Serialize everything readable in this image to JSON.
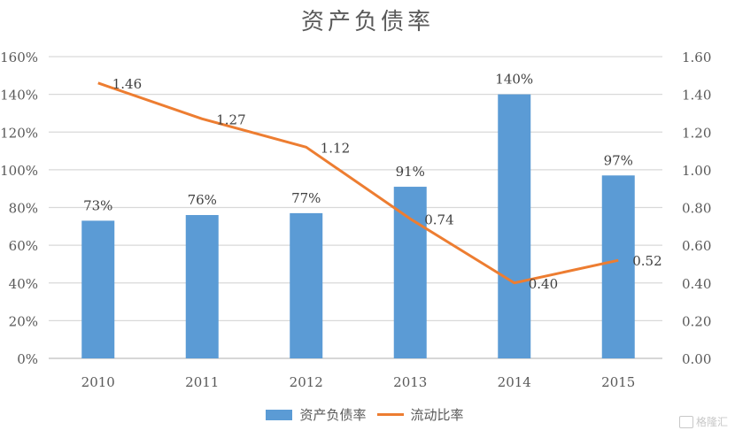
{
  "chart_data": {
    "type": "bar+line",
    "title": "资产负债率",
    "categories": [
      "2010",
      "2011",
      "2012",
      "2013",
      "2014",
      "2015"
    ],
    "series": [
      {
        "name": "资产负债率",
        "type": "bar",
        "axis": "left",
        "values": [
          73,
          76,
          77,
          91,
          140,
          97
        ],
        "labels": [
          "73%",
          "76%",
          "77%",
          "91%",
          "140%",
          "97%"
        ],
        "color": "#5B9BD5"
      },
      {
        "name": "流动比率",
        "type": "line",
        "axis": "right",
        "values": [
          1.46,
          1.27,
          1.12,
          0.74,
          0.4,
          0.52
        ],
        "labels": [
          "1.46",
          "1.27",
          "1.12",
          "0.74",
          "0.40",
          "0.52"
        ],
        "color": "#ED7D31"
      }
    ],
    "left_axis": {
      "ticks": [
        "0%",
        "20%",
        "40%",
        "60%",
        "80%",
        "100%",
        "120%",
        "140%",
        "160%"
      ],
      "ylim": [
        0,
        160
      ]
    },
    "right_axis": {
      "ticks": [
        "0.00",
        "0.20",
        "0.40",
        "0.60",
        "0.80",
        "1.00",
        "1.20",
        "1.40",
        "1.60"
      ],
      "ylim": [
        0,
        1.6
      ]
    },
    "xlabel": "",
    "ylabel": "",
    "grid": true,
    "legend_position": "bottom"
  },
  "legend": {
    "bar_label": "资产负债率",
    "line_label": "流动比率"
  },
  "watermark": {
    "text": "格隆汇"
  }
}
